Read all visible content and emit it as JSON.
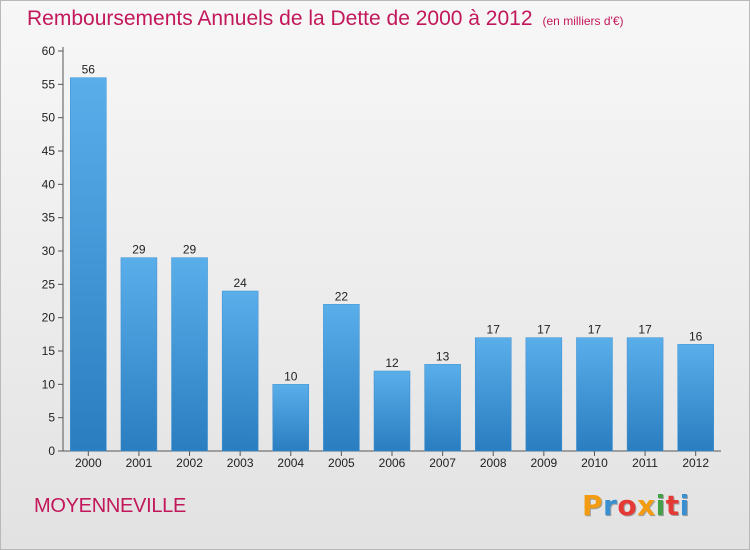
{
  "title": "Remboursements Annuels de la Dette de 2000 à 2012",
  "unit_note": "(en milliers d'€)",
  "commune": "MOYENNEVILLE",
  "logo": {
    "letters": [
      "P",
      "r",
      "o",
      "x",
      "i",
      "t",
      "i"
    ],
    "colors": [
      "#f39c12",
      "#3a8fd1",
      "#e53935",
      "#f39c12",
      "#43a047",
      "#e53935",
      "#3a8fd1"
    ]
  },
  "colors": {
    "accent": "#c2185b",
    "bar_light": "#5aaeea",
    "bar_dark": "#2a7ec0",
    "axis": "#555555"
  },
  "chart_data": {
    "type": "bar",
    "title": "Remboursements Annuels de la Dette de 2000 à 2012",
    "xlabel": "",
    "ylabel": "",
    "categories": [
      "2000",
      "2001",
      "2002",
      "2003",
      "2004",
      "2005",
      "2006",
      "2007",
      "2008",
      "2009",
      "2010",
      "2011",
      "2012"
    ],
    "values": [
      56,
      29,
      29,
      24,
      10,
      22,
      12,
      13,
      17,
      17,
      17,
      17,
      16
    ],
    "ylim": [
      0,
      60
    ],
    "yticks": [
      0,
      5,
      10,
      15,
      20,
      25,
      30,
      35,
      40,
      45,
      50,
      55,
      60
    ],
    "grid": false,
    "data_labels": true
  }
}
